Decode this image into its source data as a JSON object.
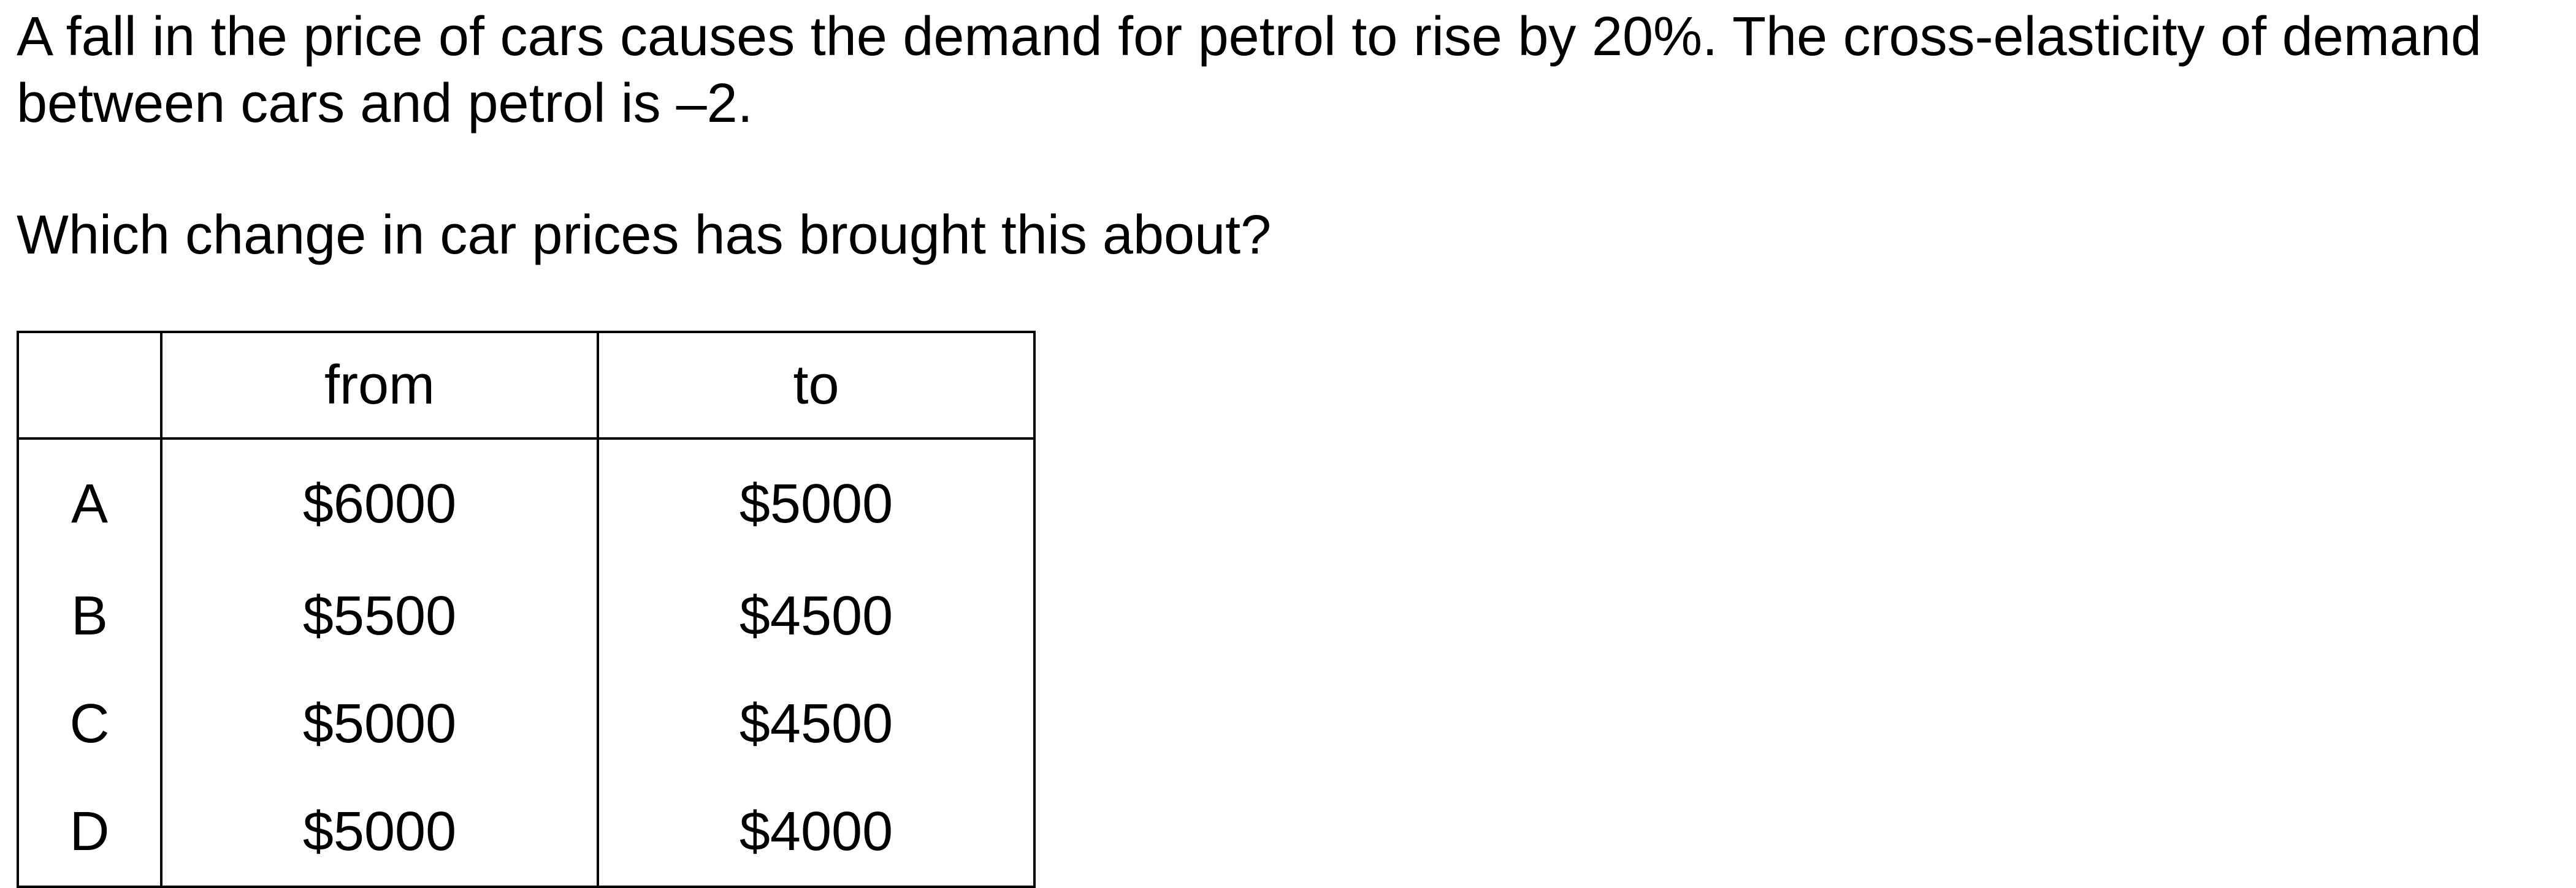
{
  "question": {
    "intro": "A fall in the price of cars causes the demand for petrol to rise by 20%. The cross-elasticity of demand between cars and petrol is –2.",
    "prompt": "Which change in car prices has brought this about?"
  },
  "table": {
    "headers": {
      "key": "",
      "from": "from",
      "to": "to"
    },
    "rows": [
      {
        "key": "A",
        "from": "$6000",
        "to": "$5000"
      },
      {
        "key": "B",
        "from": "$5500",
        "to": "$4500"
      },
      {
        "key": "C",
        "from": "$5000",
        "to": "$4500"
      },
      {
        "key": "D",
        "from": "$5000",
        "to": "$4000"
      }
    ]
  }
}
